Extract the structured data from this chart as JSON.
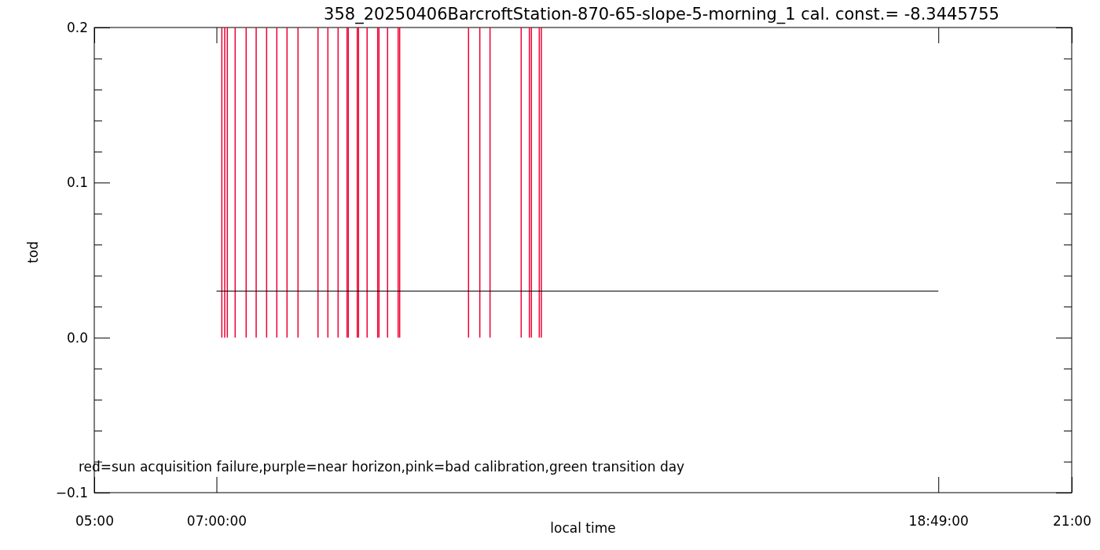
{
  "chart_data": {
    "type": "bar",
    "title": "358_20250406BarcroftStation-870-65-slope-5-morning_1 cal. const.= -8.3445755",
    "xlabel": "local time",
    "ylabel": "tod",
    "annotations": [
      "red=sun acquisition failure,purple=near horizon,pink=bad calibration,green transition day"
    ],
    "xlim": [
      5,
      21
    ],
    "xticks": [
      {
        "value": 5,
        "label": "05:00"
      },
      {
        "value": 7,
        "label": "07:00:00"
      },
      {
        "value": 18.8167,
        "label": "18:49:00"
      },
      {
        "value": 21,
        "label": "21:00"
      }
    ],
    "ylim": [
      -0.1,
      0.2
    ],
    "yticks": [
      {
        "value": -0.1,
        "label": "−0.1"
      },
      {
        "value": -0.08,
        "label": null
      },
      {
        "value": -0.06,
        "label": null
      },
      {
        "value": -0.04,
        "label": null
      },
      {
        "value": -0.02,
        "label": null
      },
      {
        "value": 0,
        "label": "0.0"
      },
      {
        "value": 0.02,
        "label": null
      },
      {
        "value": 0.04,
        "label": null
      },
      {
        "value": 0.06,
        "label": null
      },
      {
        "value": 0.08,
        "label": null
      },
      {
        "value": 0.1,
        "label": "0.1"
      },
      {
        "value": 0.12,
        "label": null
      },
      {
        "value": 0.14,
        "label": null
      },
      {
        "value": 0.16,
        "label": null
      },
      {
        "value": 0.18,
        "label": null
      },
      {
        "value": 0.2,
        "label": "0.2"
      }
    ],
    "series": [
      {
        "color": "#f00033",
        "x": [
          7.088,
          7.135,
          7.178,
          7.306,
          7.486,
          7.65,
          7.821,
          7.988,
          8.155,
          8.335,
          8.662,
          8.824,
          8.991,
          9.138,
          9.158,
          9.305,
          9.325,
          9.466,
          9.639,
          9.66,
          9.801,
          9.974,
          9.999,
          11.126,
          11.311,
          11.478,
          11.988,
          12.122,
          12.155,
          12.284,
          12.318
        ],
        "values": [
          0.2,
          0.2,
          0.2,
          0.2,
          0.2,
          0.2,
          0.2,
          0.2,
          0.2,
          0.2,
          0.2,
          0.2,
          0.2,
          0.2,
          0.2,
          0.2,
          0.2,
          0.2,
          0.2,
          0.2,
          0.2,
          0.2,
          0.2,
          0.2,
          0.2,
          0.2,
          0.2,
          0.2,
          0.2,
          0.2,
          0.2
        ]
      },
      {
        "type": "line",
        "color": "#000000",
        "x": [
          7,
          18.8167
        ],
        "values": [
          0.03,
          0.03
        ]
      }
    ]
  }
}
